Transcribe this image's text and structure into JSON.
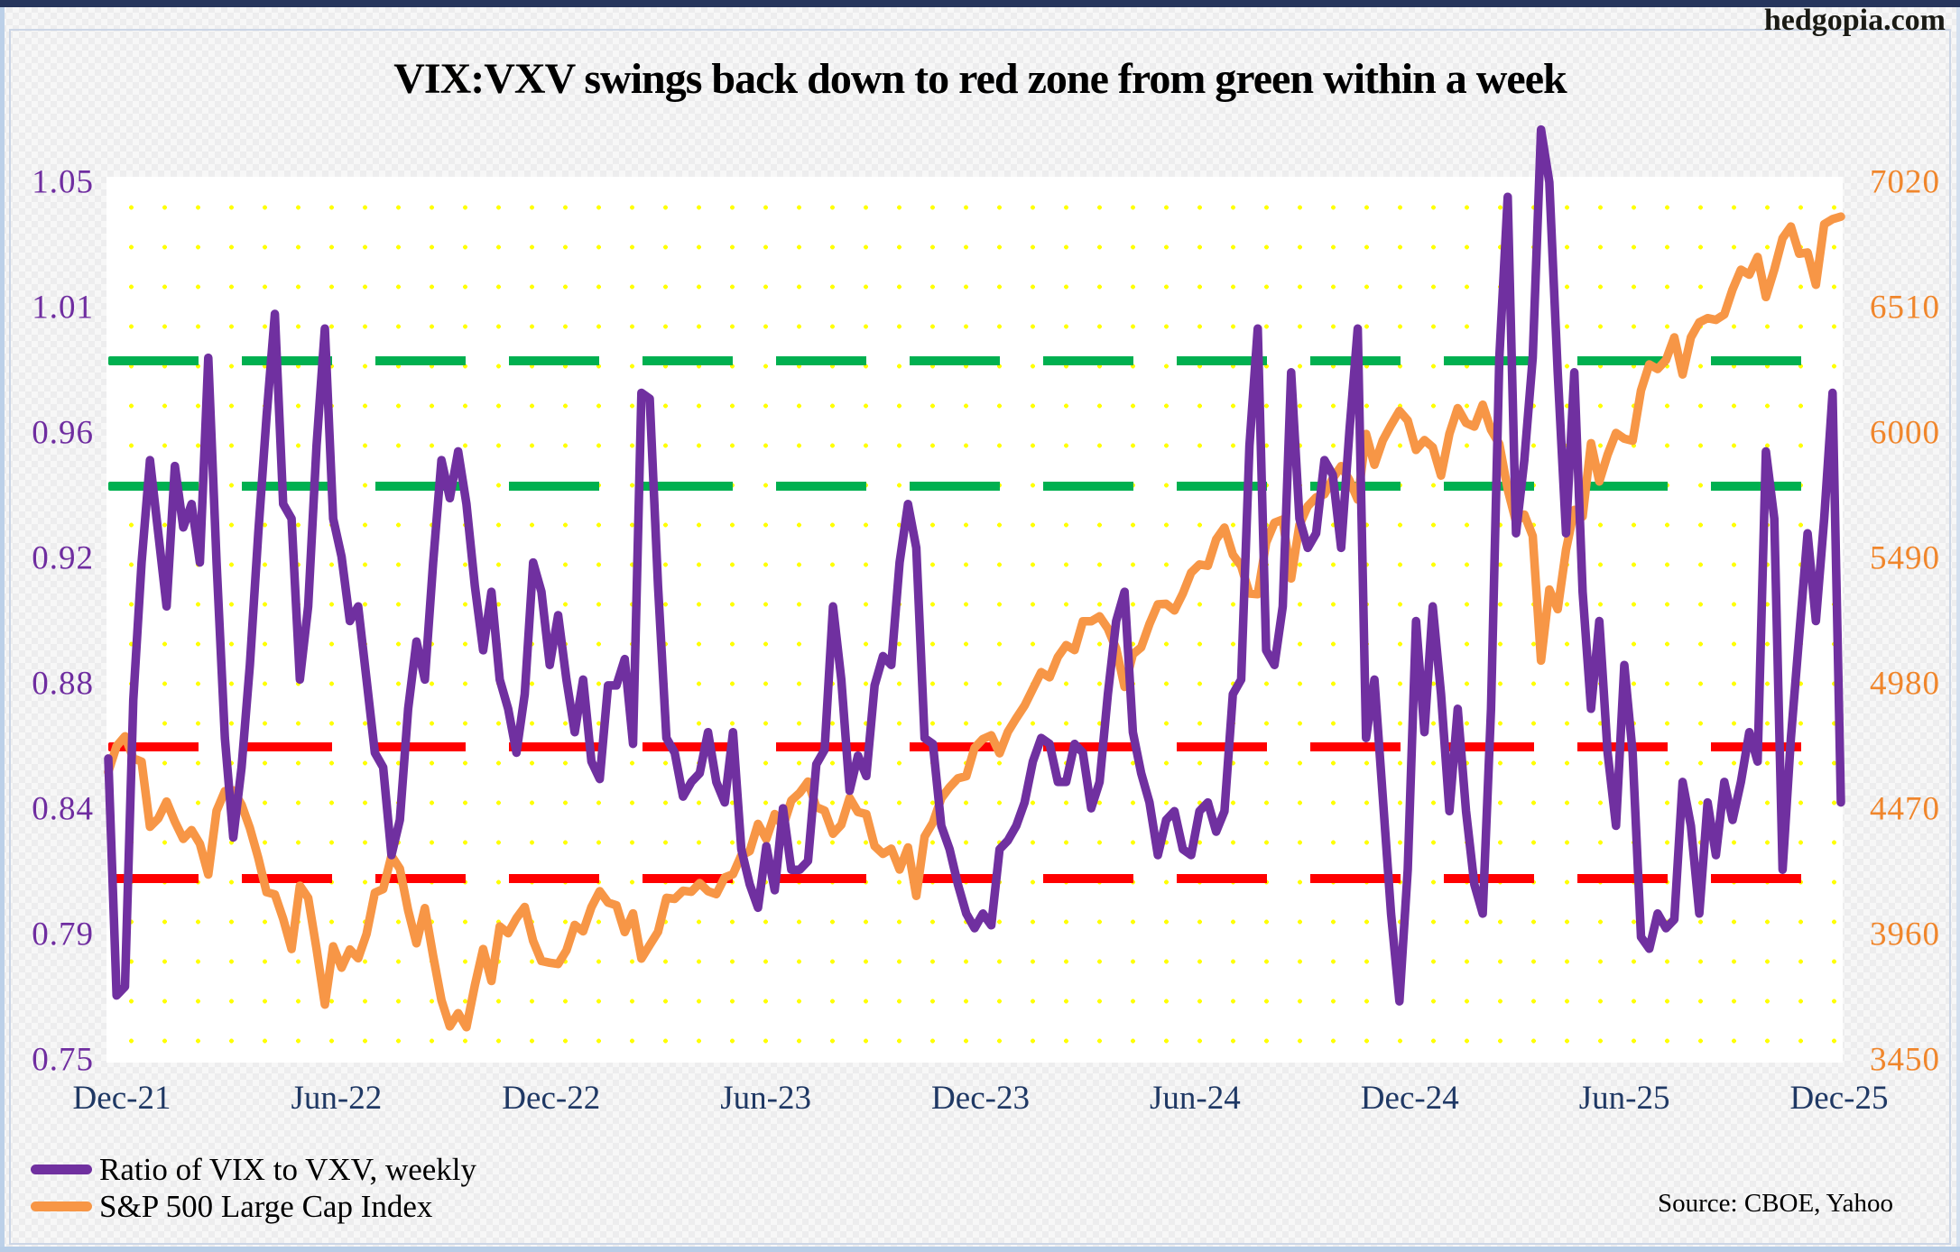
{
  "page": {
    "watermark": "hedgopia.com"
  },
  "chart": {
    "title": "VIX:VXV swings back down to red zone from green within a week",
    "source_note": "Source: CBOE, Yahoo",
    "legend": [
      {
        "label": "Ratio of VIX to VXV, weekly",
        "color": "#7030A0"
      },
      {
        "label": "S&P 500 Large Cap Index",
        "color": "#F79646"
      }
    ]
  },
  "colors": {
    "ratio_line": "#7030A0",
    "sp500_line": "#F79646",
    "left_axis_text": "#6F2DA0",
    "right_axis_text": "#F0862C",
    "x_axis_text": "#1F3864",
    "green_zone_line": "#00B050",
    "red_zone_line": "#FF0000",
    "grid_dots": "#FFFF00",
    "plot_background": "#FFFFFF"
  },
  "chart_data": {
    "type": "line",
    "title": "VIX:VXV swings back down to red zone from green within a week",
    "interval": "weekly",
    "x": {
      "tick_labels": [
        "Dec-21",
        "Jun-22",
        "Dec-22",
        "Jun-23",
        "Dec-23",
        "Jun-24",
        "Dec-24",
        "Jun-25",
        "Dec-25"
      ],
      "start_label": "Dec-21",
      "end_label": "Dec-25"
    },
    "y_left": {
      "range": [
        0.75,
        1.05
      ],
      "tick_labels": [
        "1.05",
        "1.01",
        "0.96",
        "0.92",
        "0.88",
        "0.84",
        "0.79",
        "0.75"
      ],
      "series": "Ratio of VIX to VXV"
    },
    "y_right": {
      "range": [
        3450,
        7020
      ],
      "tick_labels": [
        "7020",
        "6510",
        "6000",
        "5490",
        "4980",
        "4470",
        "3960",
        "3450"
      ],
      "series": "S&P 500"
    },
    "grid": "yellow dotted",
    "legend_position": "bottom-left",
    "reference_lines": [
      {
        "axis": "left",
        "value": 0.989,
        "color": "#00B050",
        "style": "dashed",
        "name": "green-zone-upper"
      },
      {
        "axis": "left",
        "value": 0.946,
        "color": "#00B050",
        "style": "dashed",
        "name": "green-zone-lower"
      },
      {
        "axis": "left",
        "value": 0.857,
        "color": "#FF0000",
        "style": "dashed",
        "name": "red-zone-upper"
      },
      {
        "axis": "left",
        "value": 0.812,
        "color": "#FF0000",
        "style": "dashed",
        "name": "red-zone-lower"
      }
    ],
    "series": [
      {
        "name": "Ratio of VIX to VXV, weekly",
        "axis": "left",
        "color": "#7030A0",
        "values": [
          0.853,
          0.772,
          0.775,
          0.873,
          0.92,
          0.955,
          0.93,
          0.905,
          0.953,
          0.932,
          0.94,
          0.92,
          0.99,
          0.92,
          0.86,
          0.826,
          0.85,
          0.885,
          0.93,
          0.97,
          1.005,
          0.94,
          0.935,
          0.88,
          0.905,
          0.96,
          1.0,
          0.935,
          0.922,
          0.9,
          0.905,
          0.88,
          0.855,
          0.85,
          0.82,
          0.832,
          0.87,
          0.893,
          0.88,
          0.92,
          0.955,
          0.942,
          0.958,
          0.94,
          0.912,
          0.89,
          0.91,
          0.88,
          0.87,
          0.855,
          0.875,
          0.92,
          0.91,
          0.885,
          0.902,
          0.88,
          0.862,
          0.88,
          0.852,
          0.846,
          0.878,
          0.878,
          0.887,
          0.858,
          0.978,
          0.976,
          0.912,
          0.86,
          0.855,
          0.84,
          0.845,
          0.848,
          0.862,
          0.845,
          0.838,
          0.862,
          0.822,
          0.81,
          0.802,
          0.823,
          0.808,
          0.836,
          0.815,
          0.815,
          0.818,
          0.851,
          0.856,
          0.905,
          0.88,
          0.842,
          0.854,
          0.847,
          0.878,
          0.888,
          0.885,
          0.92,
          0.94,
          0.925,
          0.86,
          0.858,
          0.83,
          0.822,
          0.81,
          0.8,
          0.795,
          0.8,
          0.796,
          0.822,
          0.825,
          0.83,
          0.838,
          0.852,
          0.86,
          0.858,
          0.845,
          0.845,
          0.858,
          0.855,
          0.836,
          0.845,
          0.875,
          0.9,
          0.91,
          0.862,
          0.848,
          0.838,
          0.82,
          0.832,
          0.835,
          0.822,
          0.82,
          0.835,
          0.838,
          0.828,
          0.835,
          0.875,
          0.88,
          0.96,
          1.0,
          0.89,
          0.885,
          0.905,
          0.985,
          0.935,
          0.925,
          0.93,
          0.955,
          0.95,
          0.925,
          0.965,
          1.0,
          0.86,
          0.88,
          0.84,
          0.8,
          0.77,
          0.815,
          0.9,
          0.862,
          0.905,
          0.875,
          0.835,
          0.87,
          0.835,
          0.81,
          0.8,
          0.87,
          0.99,
          1.045,
          0.93,
          0.955,
          0.99,
          1.068,
          1.05,
          0.985,
          0.93,
          0.985,
          0.91,
          0.87,
          0.9,
          0.855,
          0.83,
          0.885,
          0.855,
          0.792,
          0.788,
          0.8,
          0.795,
          0.798,
          0.845,
          0.83,
          0.8,
          0.838,
          0.82,
          0.845,
          0.832,
          0.845,
          0.862,
          0.852,
          0.958,
          0.935,
          0.815,
          0.86,
          0.895,
          0.93,
          0.9,
          0.935,
          0.978,
          0.838
        ]
      },
      {
        "name": "S&P 500 Large Cap Index",
        "axis": "right",
        "color": "#F79646",
        "values": [
          4621,
          4726,
          4766,
          4677,
          4663,
          4398,
          4432,
          4501,
          4419,
          4349,
          4385,
          4329,
          4204,
          4463,
          4543,
          4546,
          4488,
          4393,
          4272,
          4132,
          4123,
          4024,
          3901,
          4158,
          4109,
          3901,
          3675,
          3912,
          3825,
          3899,
          3863,
          3962,
          4130,
          4145,
          4280,
          4228,
          4058,
          3924,
          4067,
          3873,
          3693,
          3586,
          3640,
          3583,
          3753,
          3901,
          3771,
          3993,
          3965,
          4026,
          4072,
          3934,
          3852,
          3845,
          3840,
          3895,
          3999,
          3973,
          4071,
          4136,
          4090,
          4079,
          3970,
          4046,
          3862,
          3917,
          3971,
          4109,
          4105,
          4138,
          4134,
          4169,
          4136,
          4124,
          4192,
          4205,
          4282,
          4299,
          4410,
          4348,
          4450,
          4399,
          4505,
          4536,
          4582,
          4478,
          4464,
          4370,
          4406,
          4516,
          4458,
          4450,
          4320,
          4288,
          4309,
          4224,
          4314,
          4117,
          4358,
          4415,
          4514,
          4559,
          4595,
          4604,
          4719,
          4755,
          4770,
          4697,
          4784,
          4840,
          4891,
          4959,
          5027,
          5006,
          5089,
          5137,
          5117,
          5234,
          5234,
          5254,
          5204,
          5123,
          4967,
          5100,
          5128,
          5223,
          5303,
          5305,
          5278,
          5347,
          5432,
          5465,
          5460,
          5567,
          5615,
          5505,
          5459,
          5347,
          5344,
          5554,
          5635,
          5648,
          5408,
          5626,
          5702,
          5738,
          5751,
          5815,
          5865,
          5808,
          5729,
          5996,
          5871,
          5969,
          6032,
          6090,
          6051,
          5931,
          5971,
          5942,
          5827,
          5997,
          6101,
          6041,
          6026,
          6115,
          6013,
          5955,
          5770,
          5639,
          5668,
          5581,
          5074,
          5363,
          5283,
          5525,
          5687,
          5660,
          5958,
          5803,
          5912,
          6000,
          5977,
          5968,
          6173,
          6279,
          6260,
          6297,
          6389,
          6238,
          6389,
          6450,
          6467,
          6460,
          6482,
          6584,
          6664,
          6644,
          6716,
          6553,
          6664,
          6792,
          6840,
          6729,
          6734,
          6603,
          6849,
          6870,
          6880
        ]
      }
    ]
  }
}
